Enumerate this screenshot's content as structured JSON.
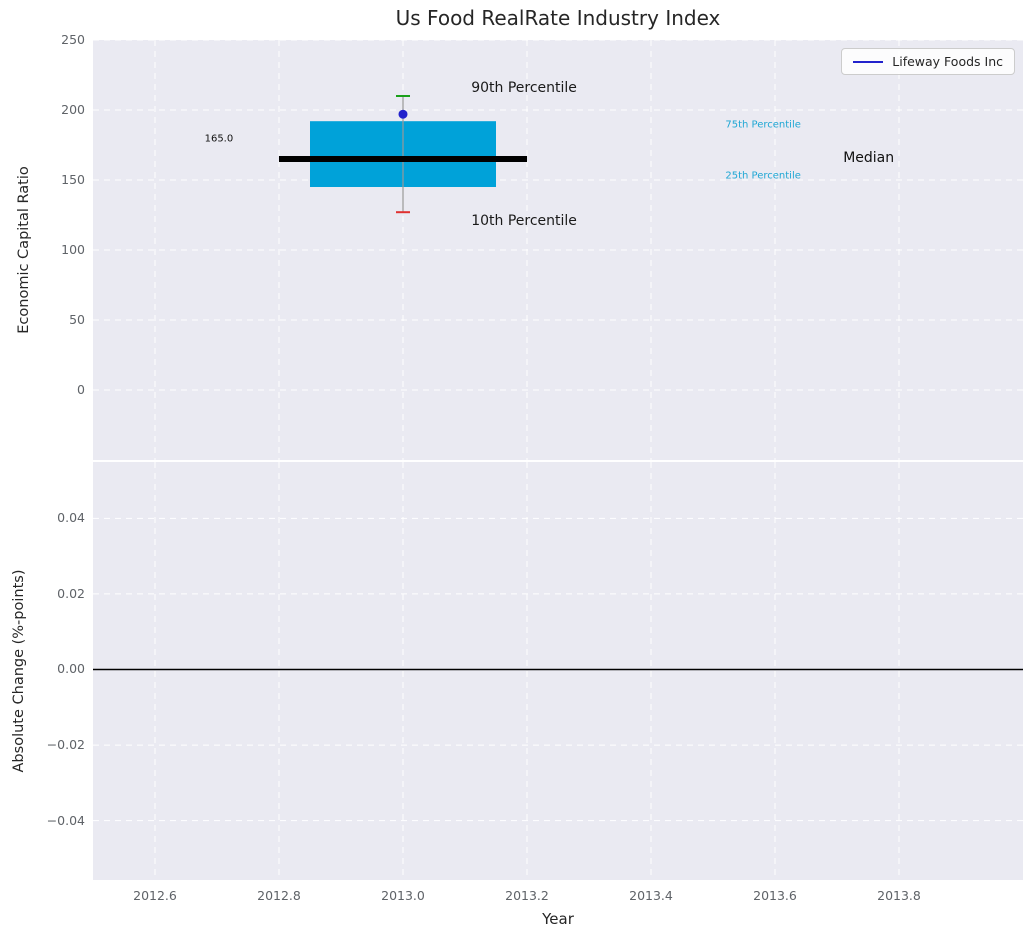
{
  "figure": {
    "background": "#ffffff",
    "axes_background": "#eaeaf2",
    "grid_color": "#ffffff"
  },
  "legend": {
    "label": "Lifeway Foods Inc",
    "line_color": "#2222cc"
  },
  "chart_data": [
    {
      "type": "box",
      "title": "Us Food RealRate Industry Index",
      "xlabel": "Year",
      "ylabel": "Economic Capital Ratio",
      "xlim": [
        2012.5,
        2014.0
      ],
      "ylim": [
        -50,
        250
      ],
      "grid": true,
      "legend_position": "upper right",
      "xticks": [
        {
          "v": 2012.6,
          "label": "2012.6"
        },
        {
          "v": 2012.8,
          "label": "2012.8"
        },
        {
          "v": 2013.0,
          "label": "2013.0"
        },
        {
          "v": 2013.2,
          "label": "2013.2"
        },
        {
          "v": 2013.4,
          "label": "2013.4"
        },
        {
          "v": 2013.6,
          "label": "2013.6"
        },
        {
          "v": 2013.8,
          "label": "2013.8"
        }
      ],
      "yticks": [
        {
          "v": 250,
          "label": "250"
        },
        {
          "v": 200,
          "label": "200"
        },
        {
          "v": 150,
          "label": "150"
        },
        {
          "v": 100,
          "label": "100"
        },
        {
          "v": 50,
          "label": "50"
        },
        {
          "v": 0,
          "label": "0"
        }
      ],
      "box": {
        "x": 2013.0,
        "box_half_width": 0.15,
        "median_half_width": 0.2,
        "p10": 127,
        "p25": 145,
        "median": 165,
        "p75": 192,
        "p90": 210,
        "median_label": "165.0",
        "company_point": {
          "name": "Lifeway Foods Inc",
          "value": 197,
          "color": "#2222cc"
        },
        "colors": {
          "box_fill": "#00a2d9",
          "median_line": "#000000",
          "whisker": "#999999",
          "p90_cap": "#1aa01a",
          "p10_cap": "#e03030"
        }
      },
      "annotations": [
        {
          "name": "annotation-90th-percentile",
          "text": "90th Percentile",
          "x": 2013.11,
          "y": 216,
          "color": "#1a1a1a",
          "size": 14
        },
        {
          "name": "annotation-10th-percentile",
          "text": "10th Percentile",
          "x": 2013.11,
          "y": 121,
          "color": "#1a1a1a",
          "size": 14
        },
        {
          "name": "annotation-75th-percentile",
          "text": "75th Percentile",
          "x": 2013.52,
          "y": 189,
          "color": "#1fa7d4",
          "size": 10
        },
        {
          "name": "annotation-25th-percentile",
          "text": "25th Percentile",
          "x": 2013.52,
          "y": 153,
          "color": "#1fa7d4",
          "size": 10
        },
        {
          "name": "annotation-median",
          "text": "Median",
          "x": 2013.71,
          "y": 166,
          "color": "#111111",
          "size": 14
        },
        {
          "name": "annotation-median-value",
          "text": "165.0",
          "x": 2012.68,
          "y": 179,
          "color": "#111111",
          "size": 10
        }
      ]
    },
    {
      "type": "line",
      "ylabel": "Absolute Change (%-points)",
      "xlim": [
        2012.5,
        2014.0
      ],
      "ylim": [
        -0.0557,
        0.0549
      ],
      "grid": true,
      "yticks": [
        {
          "v": 0.04,
          "label": "0.04"
        },
        {
          "v": 0.02,
          "label": "0.02"
        },
        {
          "v": 0.0,
          "label": "0.00"
        },
        {
          "v": -0.02,
          "label": "−0.02"
        },
        {
          "v": -0.04,
          "label": "−0.04"
        }
      ],
      "zero_line": {
        "value": 0.0,
        "color": "#000000"
      }
    }
  ]
}
